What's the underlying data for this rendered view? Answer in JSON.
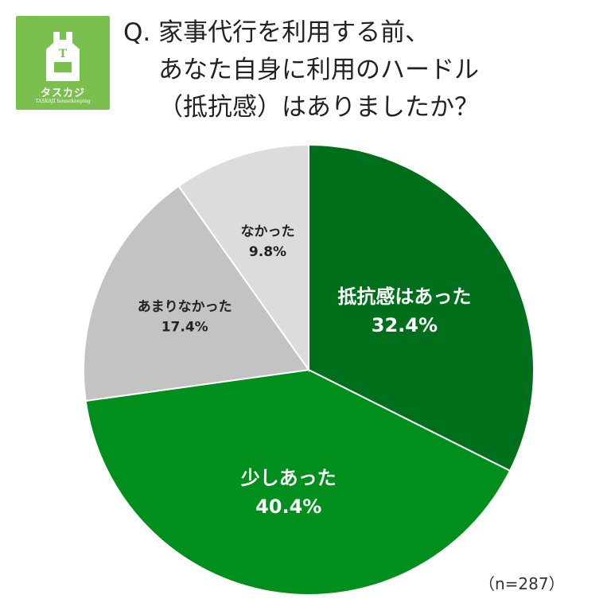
{
  "logo": {
    "name": "タスカジ",
    "tagline": "TASKAJI housekeeping",
    "letter": "T",
    "color": "#7bbf4f",
    "icon": "apron-icon"
  },
  "title": {
    "line1": "Q. 家事代行を利用する前、",
    "line2": "あなた自身に利用のハードル",
    "line3": "（抵抗感）はありましたか？"
  },
  "chart_data": {
    "type": "pie",
    "start": "12 o'clock, clockwise",
    "slices": [
      {
        "label": "抵抗感はあった",
        "value": 32.4,
        "display": "32.4%",
        "color": "#006f1b",
        "text_color": "#ffffff"
      },
      {
        "label": "少しあった",
        "value": 40.4,
        "display": "40.4%",
        "color": "#008e1c",
        "text_color": "#ffffff"
      },
      {
        "label": "あまりなかった",
        "value": 17.4,
        "display": "17.4%",
        "color": "#c3c3c3",
        "text_color": "#222222"
      },
      {
        "label": "なかった",
        "value": 9.8,
        "display": "9.8%",
        "color": "#dcdcdc",
        "text_color": "#222222"
      }
    ]
  },
  "sample_size": "（n=287）"
}
